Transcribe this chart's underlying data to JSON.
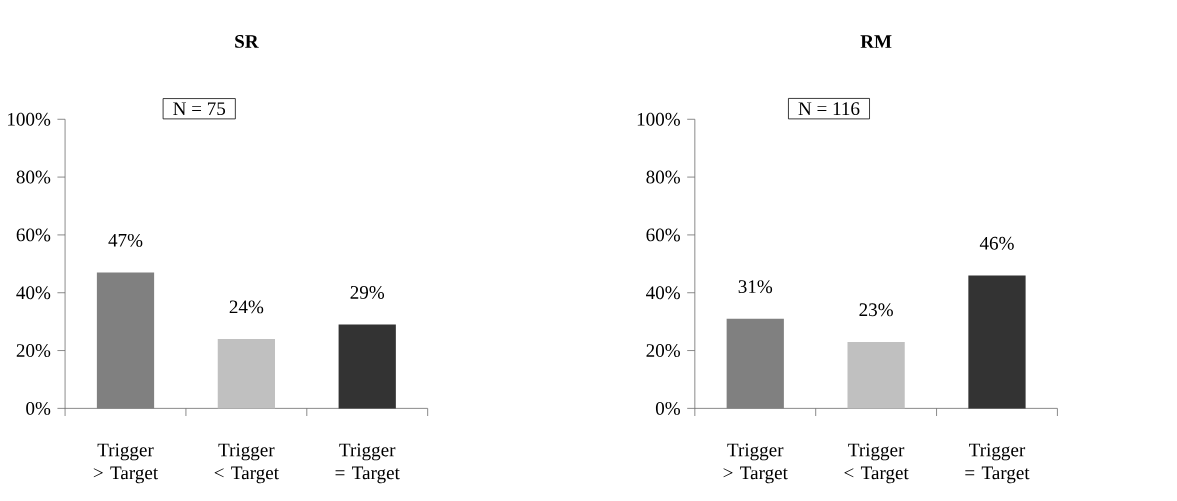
{
  "chart_data": [
    {
      "type": "bar",
      "title": "SR",
      "annotations": [
        "N = 75"
      ],
      "categories": [
        "Trigger > Target",
        "Trigger < Target",
        "Trigger = Target"
      ],
      "values": [
        47,
        24,
        29
      ],
      "colors": [
        "#808080",
        "#c0c0c0",
        "#333333"
      ],
      "value_labels": [
        "47%",
        "24%",
        "29%"
      ],
      "ylim": [
        0,
        100
      ],
      "yticks": [
        {
          "value": 0,
          "label": "0%"
        },
        {
          "value": 20,
          "label": "20%"
        },
        {
          "value": 40,
          "label": "40%"
        },
        {
          "value": 60,
          "label": "60%"
        },
        {
          "value": 80,
          "label": "80%"
        },
        {
          "value": 100,
          "label": "100%"
        }
      ]
    },
    {
      "type": "bar",
      "title": "RM",
      "annotations": [
        "N = 116"
      ],
      "categories": [
        "Trigger > Target",
        "Trigger < Target",
        "Trigger = Target"
      ],
      "values": [
        31,
        23,
        46
      ],
      "colors": [
        "#808080",
        "#c0c0c0",
        "#333333"
      ],
      "value_labels": [
        "31%",
        "23%",
        "46%"
      ],
      "ylim": [
        0,
        100
      ],
      "yticks": [
        {
          "value": 0,
          "label": "0%"
        },
        {
          "value": 20,
          "label": "20%"
        },
        {
          "value": 40,
          "label": "40%"
        },
        {
          "value": 60,
          "label": "60%"
        },
        {
          "value": 80,
          "label": "80%"
        },
        {
          "value": 100,
          "label": "100%"
        }
      ]
    }
  ]
}
